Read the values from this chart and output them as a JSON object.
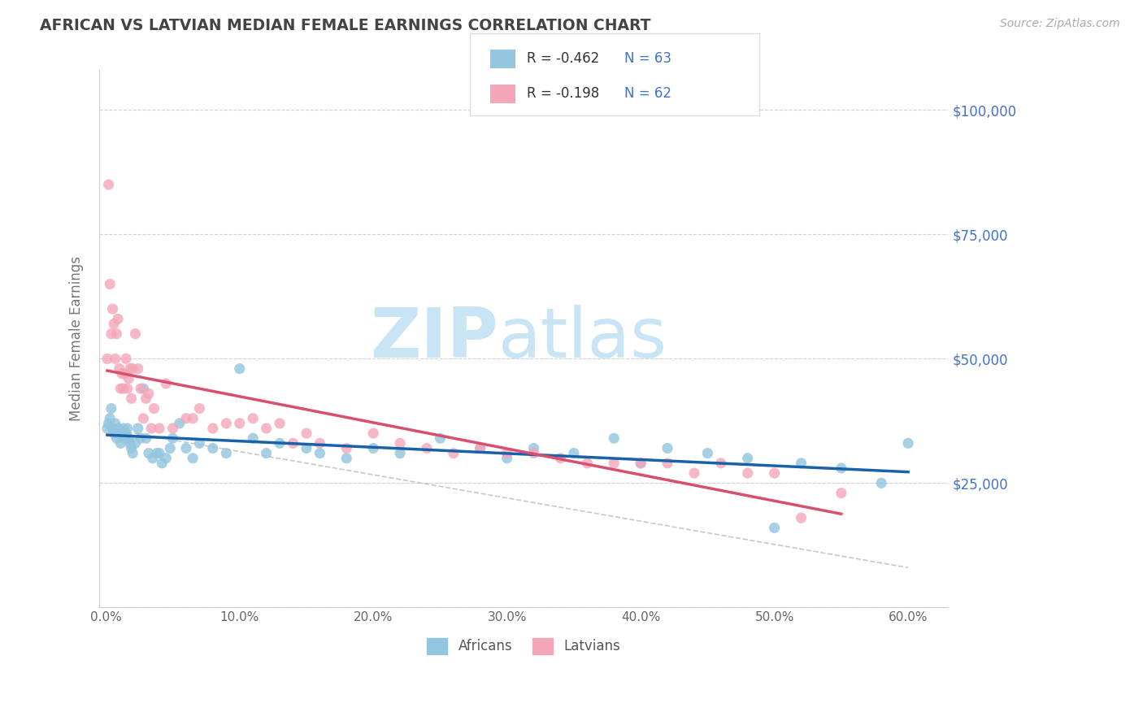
{
  "title": "AFRICAN VS LATVIAN MEDIAN FEMALE EARNINGS CORRELATION CHART",
  "source": "Source: ZipAtlas.com",
  "ylabel": "Median Female Earnings",
  "xlim": [
    -0.005,
    0.63
  ],
  "ylim": [
    0,
    108000
  ],
  "yticks": [
    0,
    25000,
    50000,
    75000,
    100000
  ],
  "ytick_labels": [
    "",
    "$25,000",
    "$50,000",
    "$75,000",
    "$100,000"
  ],
  "xticks": [
    0.0,
    0.1,
    0.2,
    0.3,
    0.4,
    0.5,
    0.6
  ],
  "xtick_labels": [
    "0.0%",
    "10.0%",
    "20.0%",
    "30.0%",
    "40.0%",
    "50.0%",
    "60.0%"
  ],
  "africans_R": "-0.462",
  "africans_N": "63",
  "latvians_R": "-0.198",
  "latvians_N": "62",
  "blue_color": "#92C5DE",
  "pink_color": "#F4A6B8",
  "blue_line_color": "#1961A8",
  "pink_line_color": "#D94F6E",
  "grid_color": "#cccccc",
  "title_color": "#555555",
  "axis_label_color": "#777777",
  "ytick_color": "#4472c4",
  "watermark_color": "#C8E4F5",
  "africans_x": [
    0.001,
    0.002,
    0.003,
    0.004,
    0.005,
    0.006,
    0.007,
    0.008,
    0.009,
    0.01,
    0.011,
    0.012,
    0.013,
    0.014,
    0.015,
    0.016,
    0.017,
    0.018,
    0.019,
    0.02,
    0.022,
    0.024,
    0.026,
    0.028,
    0.03,
    0.032,
    0.035,
    0.038,
    0.04,
    0.042,
    0.045,
    0.048,
    0.05,
    0.055,
    0.06,
    0.065,
    0.07,
    0.08,
    0.09,
    0.1,
    0.11,
    0.12,
    0.13,
    0.15,
    0.16,
    0.18,
    0.2,
    0.22,
    0.25,
    0.28,
    0.3,
    0.32,
    0.35,
    0.38,
    0.4,
    0.42,
    0.45,
    0.48,
    0.5,
    0.52,
    0.55,
    0.58,
    0.6
  ],
  "africans_y": [
    36000,
    37000,
    38000,
    40000,
    36000,
    35000,
    37000,
    34000,
    36000,
    35000,
    33000,
    35000,
    36000,
    34000,
    35000,
    36000,
    34000,
    33000,
    32000,
    31000,
    33000,
    36000,
    34000,
    44000,
    34000,
    31000,
    30000,
    31000,
    31000,
    29000,
    30000,
    32000,
    34000,
    37000,
    32000,
    30000,
    33000,
    32000,
    31000,
    48000,
    34000,
    31000,
    33000,
    32000,
    31000,
    30000,
    32000,
    31000,
    34000,
    32000,
    30000,
    32000,
    31000,
    34000,
    29000,
    32000,
    31000,
    30000,
    16000,
    29000,
    28000,
    25000,
    33000
  ],
  "latvians_x": [
    0.001,
    0.002,
    0.003,
    0.004,
    0.005,
    0.006,
    0.007,
    0.008,
    0.009,
    0.01,
    0.011,
    0.012,
    0.013,
    0.014,
    0.015,
    0.016,
    0.017,
    0.018,
    0.019,
    0.02,
    0.022,
    0.024,
    0.026,
    0.028,
    0.03,
    0.032,
    0.034,
    0.036,
    0.04,
    0.045,
    0.05,
    0.06,
    0.065,
    0.07,
    0.08,
    0.09,
    0.1,
    0.11,
    0.12,
    0.13,
    0.14,
    0.15,
    0.16,
    0.18,
    0.2,
    0.22,
    0.24,
    0.26,
    0.28,
    0.3,
    0.32,
    0.34,
    0.36,
    0.38,
    0.4,
    0.42,
    0.44,
    0.46,
    0.48,
    0.5,
    0.52,
    0.55
  ],
  "latvians_y": [
    50000,
    85000,
    65000,
    55000,
    60000,
    57000,
    50000,
    55000,
    58000,
    48000,
    44000,
    47000,
    44000,
    47000,
    50000,
    44000,
    46000,
    48000,
    42000,
    48000,
    55000,
    48000,
    44000,
    38000,
    42000,
    43000,
    36000,
    40000,
    36000,
    45000,
    36000,
    38000,
    38000,
    40000,
    36000,
    37000,
    37000,
    38000,
    36000,
    37000,
    33000,
    35000,
    33000,
    32000,
    35000,
    33000,
    32000,
    31000,
    32000,
    31000,
    31000,
    30000,
    29000,
    29000,
    29000,
    29000,
    27000,
    29000,
    27000,
    27000,
    18000,
    23000
  ]
}
